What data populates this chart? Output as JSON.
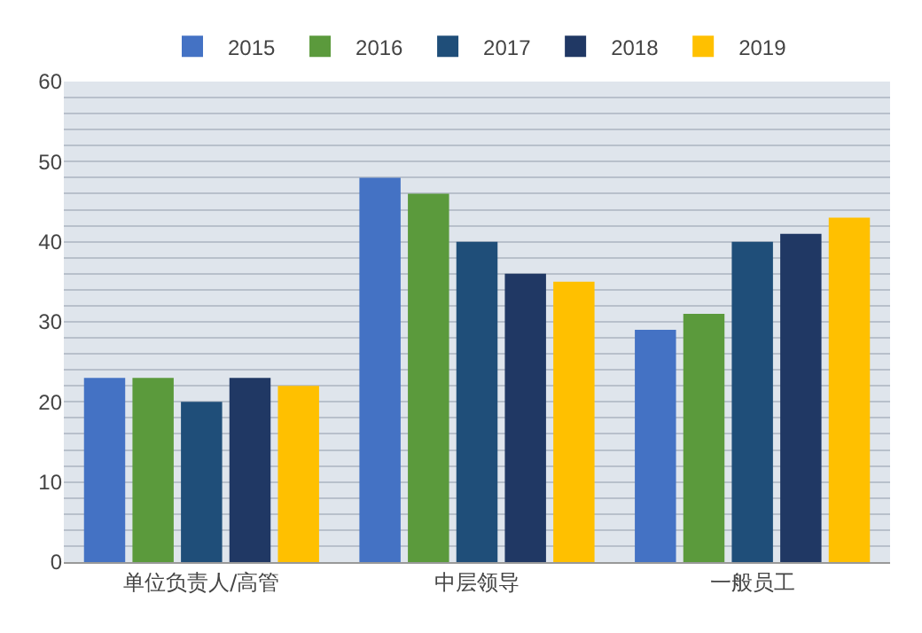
{
  "chart_data": {
    "type": "bar",
    "categories": [
      "单位负责人/高管",
      "中层领导",
      "一般员工"
    ],
    "series": [
      {
        "name": "2015",
        "color": "#4472c4",
        "values": [
          23,
          48,
          29
        ]
      },
      {
        "name": "2016",
        "color": "#5b9a3c",
        "values": [
          23,
          46,
          31
        ]
      },
      {
        "name": "2017",
        "color": "#1f4e79",
        "values": [
          20,
          40,
          40
        ]
      },
      {
        "name": "2018",
        "color": "#203864",
        "values": [
          23,
          36,
          41
        ]
      },
      {
        "name": "2019",
        "color": "#ffc000",
        "values": [
          22,
          35,
          43
        ]
      }
    ],
    "ylim": [
      0,
      60
    ],
    "yticks": [
      0,
      {
        "value": 2,
        "label": null
      },
      {
        "value": 4,
        "label": null
      },
      {
        "value": 6,
        "label": null
      },
      {
        "value": 8,
        "label": null
      },
      10,
      {
        "value": 12,
        "label": null
      },
      {
        "value": 14,
        "label": null
      },
      {
        "value": 16,
        "label": null
      },
      {
        "value": 18,
        "label": null
      },
      20,
      {
        "value": 22,
        "label": null
      },
      {
        "value": 24,
        "label": null
      },
      {
        "value": 26,
        "label": null
      },
      {
        "value": 28,
        "label": null
      },
      30,
      {
        "value": 32,
        "label": null
      },
      {
        "value": 34,
        "label": null
      },
      {
        "value": 36,
        "label": null
      },
      {
        "value": 38,
        "label": null
      },
      40,
      {
        "value": 42,
        "label": null
      },
      {
        "value": 44,
        "label": null
      },
      {
        "value": 46,
        "label": null
      },
      {
        "value": 48,
        "label": null
      },
      50,
      {
        "value": 52,
        "label": null
      },
      {
        "value": 54,
        "label": null
      },
      {
        "value": 56,
        "label": null
      },
      {
        "value": 58,
        "label": null
      },
      60
    ],
    "grid": "y",
    "legend": "top"
  }
}
